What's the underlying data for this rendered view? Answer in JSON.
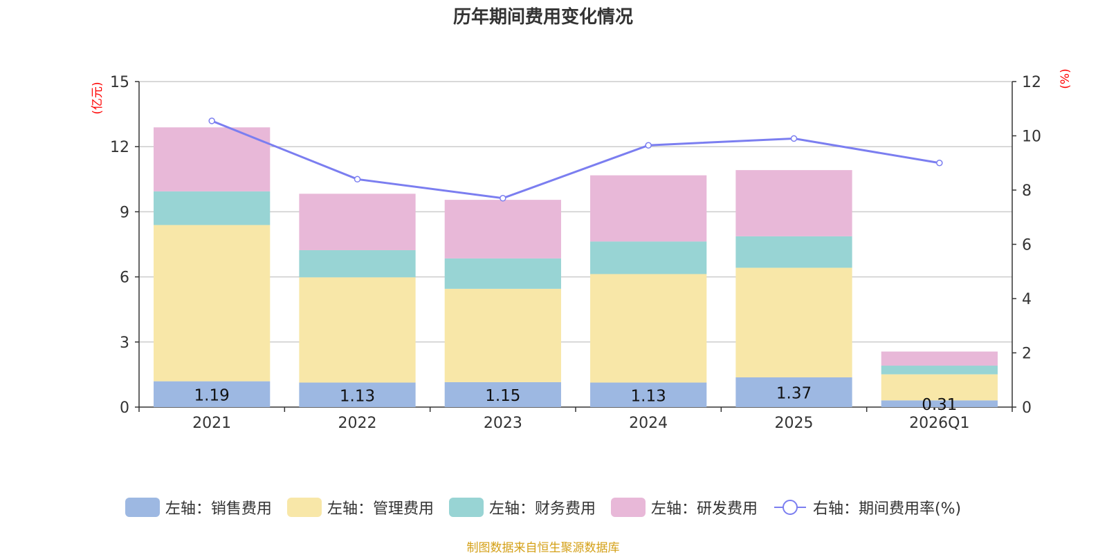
{
  "title": "历年期间费用变化情况",
  "source_note": "制图数据来自恒生聚源数据库",
  "colors": {
    "sales": "#9db8e2",
    "admin": "#f8e7a8",
    "finance": "#98d4d4",
    "rnd": "#e8b8d8",
    "rate_line": "#7b7ef0",
    "axis_unit": "#ff0000",
    "source": "#d4a017"
  },
  "chart_data": {
    "type": "bar",
    "title": "历年期间费用变化情况",
    "categories": [
      "2021",
      "2022",
      "2023",
      "2024",
      "2025",
      "2026Q1"
    ],
    "left_axis": {
      "label": "(亿元)",
      "range": [
        0,
        15
      ],
      "ticks": [
        "0",
        "3",
        "6",
        "9",
        "12",
        "15"
      ]
    },
    "right_axis": {
      "label": "(%)",
      "range": [
        0,
        12
      ],
      "ticks": [
        "0",
        "2",
        "4",
        "6",
        "8",
        "10",
        "12"
      ]
    },
    "series": [
      {
        "key": "sales",
        "name": "左轴：销售费用",
        "axis": "left",
        "stacked": true,
        "values": [
          1.19,
          1.13,
          1.15,
          1.13,
          1.37,
          0.31
        ],
        "labels": [
          "1.19",
          "1.13",
          "1.15",
          "1.13",
          "1.37",
          "0.31"
        ]
      },
      {
        "key": "admin",
        "name": "左轴：管理费用",
        "axis": "left",
        "stacked": true,
        "values": [
          7.2,
          4.85,
          4.3,
          5.0,
          5.05,
          1.2
        ]
      },
      {
        "key": "finance",
        "name": "左轴：财务费用",
        "axis": "left",
        "stacked": true,
        "values": [
          1.55,
          1.25,
          1.4,
          1.5,
          1.45,
          0.4
        ]
      },
      {
        "key": "rnd",
        "name": "左轴：研发费用",
        "axis": "left",
        "stacked": true,
        "values": [
          2.95,
          2.6,
          2.7,
          3.05,
          3.05,
          0.65
        ]
      },
      {
        "key": "rate",
        "name": "右轴：期间费用率(%)",
        "axis": "right",
        "type": "line",
        "values": [
          10.55,
          8.4,
          7.7,
          9.65,
          9.9,
          9.0
        ]
      }
    ],
    "grid": true,
    "legend_position": "bottom"
  }
}
